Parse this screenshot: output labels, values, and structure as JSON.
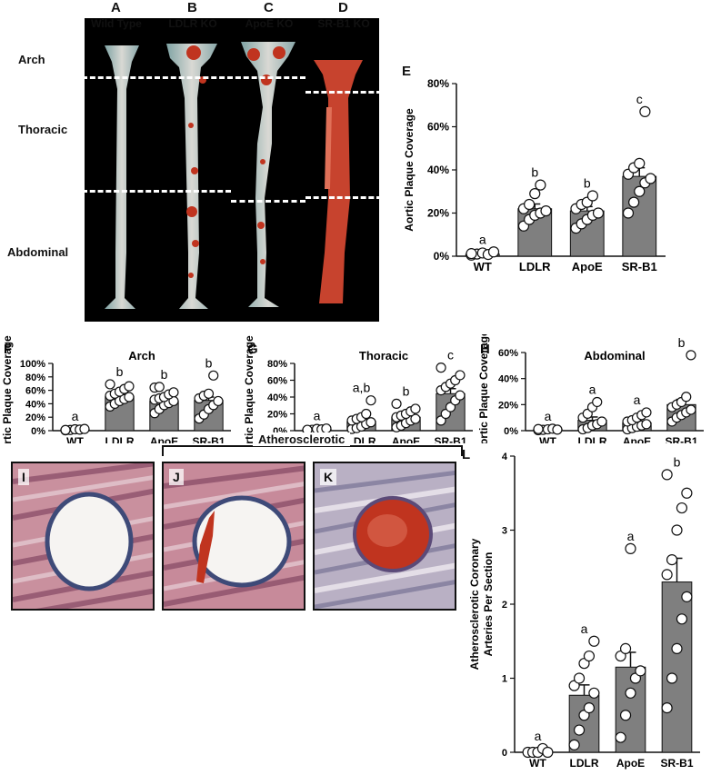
{
  "aorta_panels": [
    {
      "letter": "A",
      "label": "Wild Type"
    },
    {
      "letter": "B",
      "label": "LDLR KO"
    },
    {
      "letter": "C",
      "label": "ApoE KO"
    },
    {
      "letter": "D",
      "label": "SR-B1 KO"
    }
  ],
  "regions": {
    "arch": "Arch",
    "thoracic": "Thoracic",
    "abdominal": "Abdominal"
  },
  "histology": {
    "bracket_label": "Atherosclerotic",
    "panels": [
      {
        "letter": "I"
      },
      {
        "letter": "J"
      },
      {
        "letter": "K"
      }
    ]
  },
  "colors": {
    "bar": "#7f7f7f",
    "tissue_pink": "#b07a8a",
    "plaque_red": "#c0341f"
  },
  "chart_data": [
    {
      "id": "E",
      "type": "bar",
      "title": "",
      "ylabel": "Aortic Plaque Coverage",
      "categories": [
        "WT",
        "LDLR",
        "ApoE",
        "SR-B1"
      ],
      "values": [
        1,
        22,
        21,
        37
      ],
      "errors": [
        0.5,
        2.2,
        2.0,
        4.0
      ],
      "letters": [
        "a",
        "b",
        "b",
        "c"
      ],
      "points": [
        [
          0.5,
          1,
          1.5,
          0.8,
          2,
          1.2
        ],
        [
          14,
          17,
          19,
          20,
          21,
          22,
          24,
          29,
          33
        ],
        [
          13,
          15,
          17,
          19,
          20,
          22,
          24,
          25,
          28
        ],
        [
          20,
          25,
          30,
          34,
          36,
          38,
          41,
          43,
          67
        ]
      ],
      "ylim": [
        0,
        80
      ],
      "yticks": [
        0,
        20,
        40,
        60,
        80
      ],
      "yfmt": "%"
    },
    {
      "id": "F",
      "type": "bar",
      "title": "Arch",
      "ylabel": "Aortic Plaque Coverage",
      "categories": [
        "WT",
        "LDLR",
        "ApoE",
        "SR-B1"
      ],
      "values": [
        1.5,
        51,
        44,
        45
      ],
      "errors": [
        0.8,
        3.5,
        4.0,
        5.0
      ],
      "letters": [
        "a",
        "b",
        "b",
        "b"
      ],
      "points": [
        [
          0.5,
          1,
          2,
          1.5,
          2.5,
          1
        ],
        [
          36,
          40,
          44,
          47,
          50,
          52,
          55,
          58,
          62,
          66,
          69
        ],
        [
          26,
          32,
          38,
          41,
          44,
          46,
          48,
          50,
          54,
          57,
          64,
          65
        ],
        [
          18,
          24,
          32,
          38,
          44,
          48,
          52,
          55,
          82
        ]
      ],
      "ylim": [
        0,
        100
      ],
      "yticks": [
        0,
        20,
        40,
        60,
        80,
        100
      ],
      "yfmt": "%"
    },
    {
      "id": "G",
      "type": "bar",
      "title": "Thoracic",
      "ylabel": "Aortic Plaque Coverage",
      "categories": [
        "WT",
        "LDLR",
        "ApoE",
        "SR-B1"
      ],
      "values": [
        1.5,
        11,
        16,
        44
      ],
      "errors": [
        0.8,
        3.0,
        3.0,
        6.0
      ],
      "letters": [
        "a",
        "a,b",
        "b",
        "c"
      ],
      "points": [
        [
          0.5,
          1,
          2,
          1.5,
          2.5,
          1
        ],
        [
          2,
          3,
          5,
          8,
          10,
          12,
          14,
          16,
          20,
          36
        ],
        [
          4,
          6,
          9,
          12,
          14,
          16,
          18,
          20,
          23,
          26,
          32
        ],
        [
          12,
          20,
          28,
          36,
          42,
          48,
          52,
          56,
          60,
          66,
          75
        ]
      ],
      "ylim": [
        0,
        80
      ],
      "yticks": [
        0,
        20,
        40,
        60,
        80
      ],
      "yfmt": "%"
    },
    {
      "id": "H",
      "type": "bar",
      "title": "Abdominal",
      "ylabel": "Aortic Plaque Coverage",
      "categories": [
        "WT",
        "LDLR",
        "ApoE",
        "SR-B1"
      ],
      "values": [
        1,
        8,
        6,
        20
      ],
      "errors": [
        0.5,
        2.5,
        1.5,
        4.0
      ],
      "letters": [
        "a",
        "a",
        "a",
        "b"
      ],
      "points": [
        [
          0.3,
          0.6,
          1,
          1.5,
          0.8,
          1.2
        ],
        [
          1,
          2,
          4,
          5,
          7,
          10,
          13,
          18,
          22
        ],
        [
          1,
          2,
          3,
          4,
          5,
          7,
          8,
          10,
          12,
          14
        ],
        [
          7,
          10,
          12,
          14,
          16,
          18,
          20,
          22,
          26,
          58
        ]
      ],
      "ylim": [
        0,
        60
      ],
      "yticks": [
        0,
        20,
        40,
        60
      ],
      "yfmt": "%"
    },
    {
      "id": "L",
      "type": "bar",
      "title": "",
      "ylabel": "Atherosclerotic Coronary Arteries Per Section",
      "categories": [
        "WT",
        "LDLR",
        "ApoE",
        "SR-B1"
      ],
      "values": [
        0,
        0.77,
        1.15,
        2.3
      ],
      "errors": [
        0,
        0.14,
        0.2,
        0.32
      ],
      "letters": [
        "a",
        "a",
        "a",
        "b"
      ],
      "points": [
        [
          0,
          0,
          0,
          0.05,
          0
        ],
        [
          0.1,
          0.3,
          0.5,
          0.6,
          0.8,
          0.9,
          1,
          1.2,
          1.3,
          1.5
        ],
        [
          0.2,
          0.5,
          0.8,
          1,
          1.1,
          1.3,
          1.4,
          2.75
        ],
        [
          0.6,
          1,
          1.4,
          1.8,
          2.1,
          2.4,
          2.6,
          3,
          3.3,
          3.5,
          3.75
        ]
      ],
      "ylim": [
        0,
        4
      ],
      "yticks": [
        0,
        1,
        2,
        3,
        4
      ],
      "yfmt": "n"
    }
  ]
}
